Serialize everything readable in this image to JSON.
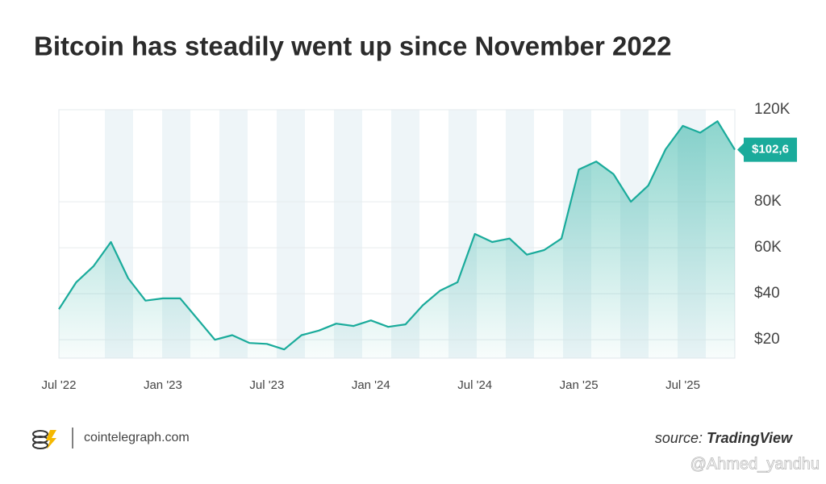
{
  "chart_data": {
    "type": "line",
    "title": "Bitcoin has steadily went up since November 2022",
    "x": [
      "2022-07",
      "2022-08",
      "2022-09",
      "2022-10",
      "2022-11",
      "2022-12",
      "2023-01",
      "2023-02",
      "2023-03",
      "2023-04",
      "2023-05",
      "2023-06",
      "2023-07",
      "2023-08",
      "2023-09",
      "2023-10",
      "2023-11",
      "2023-12",
      "2024-01",
      "2024-02",
      "2024-03",
      "2024-04",
      "2024-05",
      "2024-06",
      "2024-07",
      "2024-08",
      "2024-09",
      "2024-10",
      "2024-11",
      "2024-12",
      "2025-01",
      "2025-02",
      "2025-03",
      "2025-04",
      "2025-05",
      "2025-06",
      "2025-07",
      "2025-08",
      "2025-09",
      "2025-10"
    ],
    "series": [
      {
        "name": "Bitcoin",
        "color": "#1aab9b",
        "values": [
          33.3,
          45,
          52,
          62.5,
          46.7,
          37,
          38,
          38,
          29,
          20,
          22,
          18.6,
          18.2,
          15.8,
          22,
          24,
          27,
          26,
          28.4,
          25.6,
          26.7,
          35,
          41.4,
          45,
          66,
          62.5,
          64,
          57,
          59,
          64,
          94,
          97.5,
          92,
          80,
          87,
          102.8,
          113,
          110,
          115,
          102.6
        ],
        "value_labels": [
          null,
          null,
          null,
          null,
          null,
          null,
          null,
          null,
          null,
          null,
          null,
          null,
          null,
          null,
          null,
          null,
          null,
          null,
          null,
          null,
          null,
          null,
          null,
          null,
          null,
          null,
          null,
          null,
          null,
          null,
          null,
          null,
          null,
          null,
          null,
          null,
          null,
          null,
          null,
          "$102,6"
        ]
      }
    ],
    "ylim": [
      12,
      120
    ],
    "yticks": [
      {
        "value": 20,
        "label": "$20"
      },
      {
        "value": 40,
        "label": "$40"
      },
      {
        "value": 60,
        "label": "60K"
      },
      {
        "value": 80,
        "label": "80K"
      },
      {
        "value": 120,
        "label": "120K"
      }
    ],
    "xticks": [
      {
        "value": "2022-07",
        "label": "Jul '22"
      },
      {
        "value": "2023-01",
        "label": "Jan '23"
      },
      {
        "value": "2023-07",
        "label": "Jul '23"
      },
      {
        "value": "2024-01",
        "label": "Jan '24"
      },
      {
        "value": "2024-07",
        "label": "Jul '24"
      },
      {
        "value": "2025-01",
        "label": "Jan '25"
      },
      {
        "value": "2025-07",
        "label": "Jul '25"
      }
    ],
    "grid": true,
    "source_prefix": "source:",
    "source_name": "TradingView",
    "brand": "cointelegraph.com",
    "watermark": "@Ahmed_yandhu"
  }
}
